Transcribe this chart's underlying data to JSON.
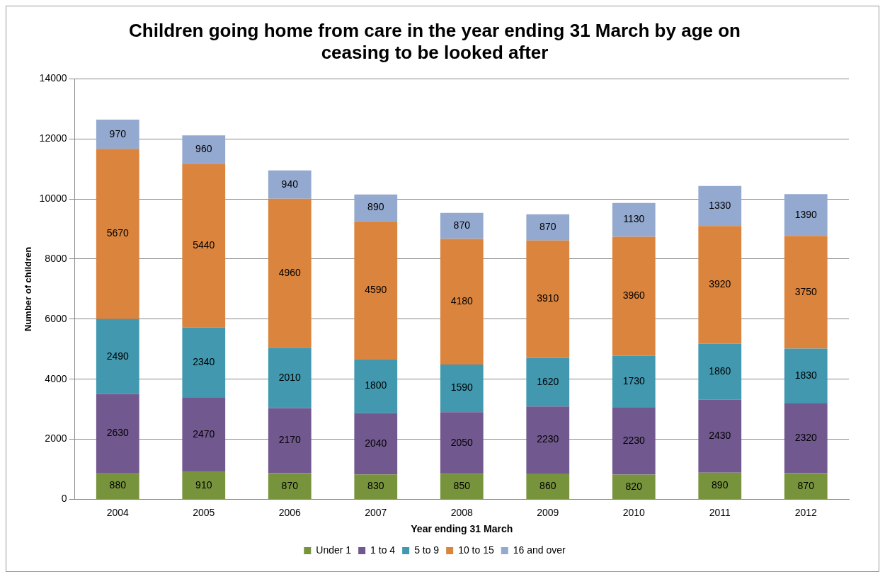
{
  "chart_data": {
    "type": "bar",
    "title": "Children going home from care in the year ending 31 March by age on ceasing to be looked after",
    "xlabel": "Year ending 31 March",
    "ylabel": "Number of children",
    "categories": [
      "2004",
      "2005",
      "2006",
      "2007",
      "2008",
      "2009",
      "2010",
      "2011",
      "2012"
    ],
    "stacked": true,
    "data_labels": true,
    "grid": "y",
    "legend": "bottom",
    "ylim": [
      0,
      14000
    ],
    "yticks": [
      0,
      2000,
      4000,
      6000,
      8000,
      10000,
      12000,
      14000
    ],
    "series": [
      {
        "name": "Under 1",
        "color": "#77933c",
        "values": [
          880,
          910,
          870,
          830,
          850,
          860,
          820,
          890,
          870
        ]
      },
      {
        "name": "1 to 4",
        "color": "#71588f",
        "values": [
          2630,
          2470,
          2170,
          2040,
          2050,
          2230,
          2230,
          2430,
          2320
        ]
      },
      {
        "name": "5 to 9",
        "color": "#4198af",
        "values": [
          2490,
          2340,
          2010,
          1800,
          1590,
          1620,
          1730,
          1860,
          1830
        ]
      },
      {
        "name": "10 to 15",
        "color": "#db843d",
        "values": [
          5670,
          5440,
          4960,
          4590,
          4180,
          3910,
          3960,
          3920,
          3750
        ]
      },
      {
        "name": "16 and over",
        "color": "#93a9cf",
        "values": [
          970,
          960,
          940,
          890,
          870,
          870,
          1130,
          1330,
          1390
        ]
      }
    ]
  }
}
